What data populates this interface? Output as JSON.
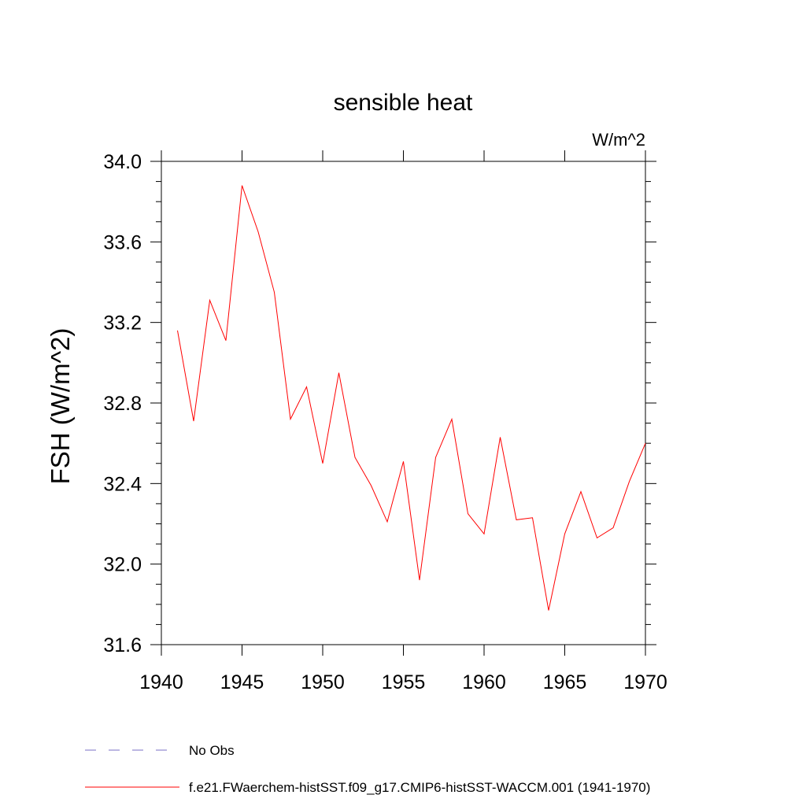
{
  "chart_data": {
    "type": "line",
    "title": "sensible heat",
    "units": "W/m^2",
    "xlabel": "",
    "ylabel": "FSH  (W/m^2)",
    "xlim": [
      1940,
      1970
    ],
    "ylim": [
      31.6,
      34.0
    ],
    "x_ticks": [
      "1940",
      "1945",
      "1950",
      "1955",
      "1960",
      "1965",
      "1970"
    ],
    "y_ticks": [
      "31.6",
      "32.0",
      "32.4",
      "32.8",
      "33.2",
      "33.6",
      "34.0"
    ],
    "grid": false,
    "legend_position": "bottom-left",
    "series": [
      {
        "name": "f.e21.FWaerchem-histSST.f09_g17.CMIP6-histSST-WACCM.001 (1941-1970)",
        "color": "#ff0000",
        "style": "solid",
        "x": [
          1941,
          1942,
          1943,
          1944,
          1945,
          1946,
          1947,
          1948,
          1949,
          1950,
          1951,
          1952,
          1953,
          1954,
          1955,
          1956,
          1957,
          1958,
          1959,
          1960,
          1961,
          1962,
          1963,
          1964,
          1965,
          1966,
          1967,
          1968,
          1969,
          1970
        ],
        "y": [
          33.16,
          32.71,
          33.31,
          33.11,
          33.88,
          33.65,
          33.35,
          32.72,
          32.88,
          32.5,
          32.95,
          32.53,
          32.39,
          32.21,
          32.51,
          31.92,
          32.53,
          32.72,
          32.25,
          32.15,
          32.63,
          32.22,
          32.23,
          31.77,
          32.15,
          32.36,
          32.13,
          32.18,
          32.41,
          32.6
        ]
      }
    ],
    "legend": [
      {
        "label": "No Obs",
        "color": "#7a6fc4",
        "style": "dashed"
      },
      {
        "label": "f.e21.FWaerchem-histSST.f09_g17.CMIP6-histSST-WACCM.001 (1941-1970)",
        "color": "#ff0000",
        "style": "solid"
      }
    ]
  }
}
